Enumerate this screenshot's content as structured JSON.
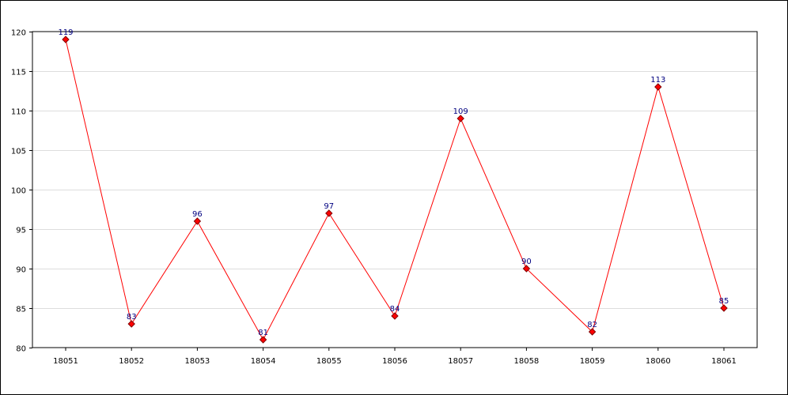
{
  "chart_data": {
    "type": "line",
    "title": "",
    "xlabel": "",
    "ylabel": "",
    "categories": [
      "18051",
      "18052",
      "18053",
      "18054",
      "18055",
      "18056",
      "18057",
      "18058",
      "18059",
      "18060",
      "18061"
    ],
    "series": [
      {
        "values": [
          119,
          83,
          96,
          81,
          97,
          84,
          109,
          90,
          82,
          113,
          85
        ]
      }
    ],
    "ylim": [
      80,
      120
    ],
    "yticks": [
      80,
      85,
      90,
      95,
      100,
      105,
      110,
      115,
      120
    ],
    "grid": true,
    "data_labels": true,
    "colors": {
      "line": "#ff0000",
      "marker_fill": "#ff0000",
      "marker_stroke": "#800000",
      "data_label": "#000080",
      "grid": "#dddddd",
      "axis": "#000000"
    }
  }
}
